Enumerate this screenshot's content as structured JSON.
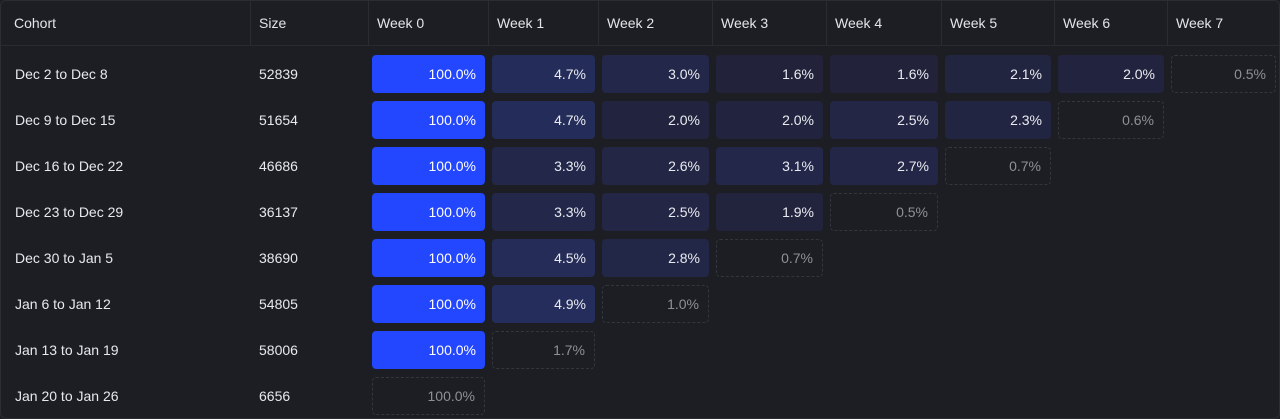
{
  "header": {
    "cohort": "Cohort",
    "size": "Size",
    "weeks": [
      "Week 0",
      "Week 1",
      "Week 2",
      "Week 3",
      "Week 4",
      "Week 5",
      "Week 6",
      "Week 7"
    ]
  },
  "colors": {
    "week0": "#2346ff",
    "shade_low": "#22233a",
    "shade_high": "#242d5c",
    "partial_border": "#34363d",
    "partial_text": "#8e9097"
  },
  "rows": [
    {
      "cohort": "Dec 2 to Dec 8",
      "size": "52839",
      "values": [
        100.0,
        4.7,
        3.0,
        1.6,
        1.6,
        2.1,
        2.0,
        0.5
      ],
      "labels": [
        "100.0%",
        "4.7%",
        "3.0%",
        "1.6%",
        "1.6%",
        "2.1%",
        "2.0%",
        "0.5%"
      ]
    },
    {
      "cohort": "Dec 9 to Dec 15",
      "size": "51654",
      "values": [
        100.0,
        4.7,
        2.0,
        2.0,
        2.5,
        2.3,
        0.6
      ],
      "labels": [
        "100.0%",
        "4.7%",
        "2.0%",
        "2.0%",
        "2.5%",
        "2.3%",
        "0.6%"
      ]
    },
    {
      "cohort": "Dec 16 to Dec 22",
      "size": "46686",
      "values": [
        100.0,
        3.3,
        2.6,
        3.1,
        2.7,
        0.7
      ],
      "labels": [
        "100.0%",
        "3.3%",
        "2.6%",
        "3.1%",
        "2.7%",
        "0.7%"
      ]
    },
    {
      "cohort": "Dec 23 to Dec 29",
      "size": "36137",
      "values": [
        100.0,
        3.3,
        2.5,
        1.9,
        0.5
      ],
      "labels": [
        "100.0%",
        "3.3%",
        "2.5%",
        "1.9%",
        "0.5%"
      ]
    },
    {
      "cohort": "Dec 30 to Jan 5",
      "size": "38690",
      "values": [
        100.0,
        4.5,
        2.8,
        0.7
      ],
      "labels": [
        "100.0%",
        "4.5%",
        "2.8%",
        "0.7%"
      ]
    },
    {
      "cohort": "Jan 6 to Jan 12",
      "size": "54805",
      "values": [
        100.0,
        4.9,
        1.0
      ],
      "labels": [
        "100.0%",
        "4.9%",
        "1.0%"
      ]
    },
    {
      "cohort": "Jan 13 to Jan 19",
      "size": "58006",
      "values": [
        100.0,
        1.7
      ],
      "labels": [
        "100.0%",
        "1.7%"
      ]
    },
    {
      "cohort": "Jan 20 to Jan 26",
      "size": "6656",
      "values": [
        100.0
      ],
      "labels": [
        "100.0%"
      ]
    }
  ]
}
